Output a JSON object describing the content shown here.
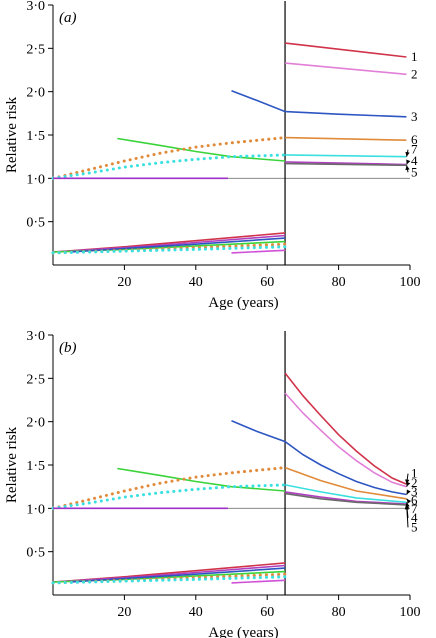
{
  "chart_data": [
    {
      "type": "line",
      "panel_label": "(a)",
      "xlabel": "Age (years)",
      "ylabel": "Relative risk",
      "xlim": [
        0,
        100
      ],
      "ylim": [
        0,
        3.0
      ],
      "xticks": [
        20,
        40,
        60,
        80,
        100
      ],
      "xtick_labels": [
        "20",
        "40",
        "60",
        "80",
        "100"
      ],
      "yticks": [
        0.5,
        1.0,
        1.5,
        2.0,
        2.5,
        3.0
      ],
      "ytick_labels": [
        "0·5",
        "1·0",
        "1·5",
        "2·0",
        "2·5",
        "3·0"
      ],
      "reference_y": 1.0,
      "vertical_line_x": 65,
      "grid": false,
      "series": [
        {
          "label": "1",
          "color": "#d0334a",
          "style": "solid",
          "x": [
            65,
            99
          ],
          "y": [
            2.56,
            2.4
          ]
        },
        {
          "label": "2",
          "color": "#e27fd8",
          "style": "solid",
          "x": [
            65,
            99
          ],
          "y": [
            2.33,
            2.2
          ]
        },
        {
          "label": "3",
          "color": "#2e56c2",
          "style": "solid",
          "x": [
            50,
            57,
            65,
            80,
            99
          ],
          "y": [
            2.01,
            1.9,
            1.77,
            1.74,
            1.71
          ]
        },
        {
          "label": "6",
          "color": "#e08a3a",
          "style": "solid",
          "x": [
            65,
            99
          ],
          "y": [
            1.47,
            1.44
          ]
        },
        {
          "label": "7",
          "color": "#3ae0e0",
          "style": "solid",
          "x": [
            65,
            99
          ],
          "y": [
            1.27,
            1.25
          ]
        },
        {
          "label": "4",
          "color": "#b040c0",
          "style": "solid",
          "x": [
            65,
            99
          ],
          "y": [
            1.19,
            1.16
          ]
        },
        {
          "label": "5",
          "color": "#6a6a6a",
          "style": "solid",
          "x": [
            65,
            99
          ],
          "y": [
            1.17,
            1.15
          ]
        },
        {
          "color": "#3ad43a",
          "style": "solid",
          "x": [
            18,
            30,
            40,
            50,
            65
          ],
          "y": [
            1.46,
            1.38,
            1.31,
            1.25,
            1.2
          ]
        },
        {
          "color": "#e08a3a",
          "style": "dotted",
          "x": [
            0,
            10,
            20,
            30,
            40,
            50,
            65
          ],
          "y": [
            1.0,
            1.1,
            1.2,
            1.29,
            1.36,
            1.41,
            1.47
          ]
        },
        {
          "color": "#3ae0e0",
          "style": "dotted",
          "x": [
            0,
            10,
            20,
            30,
            40,
            50,
            65
          ],
          "y": [
            1.0,
            1.06,
            1.13,
            1.18,
            1.22,
            1.25,
            1.27
          ]
        },
        {
          "color": "#a030c8",
          "style": "solid",
          "x": [
            0,
            49
          ],
          "y": [
            1.0,
            1.0
          ]
        },
        {
          "color": "#d0334a",
          "style": "solid",
          "x": [
            0,
            20,
            40,
            65
          ],
          "y": [
            0.15,
            0.21,
            0.28,
            0.37
          ]
        },
        {
          "color": "#b040c0",
          "style": "solid",
          "x": [
            0,
            20,
            40,
            65
          ],
          "y": [
            0.15,
            0.2,
            0.26,
            0.34
          ]
        },
        {
          "color": "#3ad43a",
          "style": "solid",
          "x": [
            0,
            20,
            40,
            65
          ],
          "y": [
            0.15,
            0.18,
            0.22,
            0.27
          ]
        },
        {
          "color": "#2e56c2",
          "style": "solid",
          "x": [
            5,
            20,
            40,
            65
          ],
          "y": [
            0.15,
            0.19,
            0.24,
            0.31
          ]
        },
        {
          "color": "#e08a3a",
          "style": "dotted",
          "x": [
            0,
            20,
            40,
            65
          ],
          "y": [
            0.14,
            0.17,
            0.2,
            0.24
          ]
        },
        {
          "color": "#3ae0e0",
          "style": "dotted",
          "x": [
            0,
            20,
            40,
            65
          ],
          "y": [
            0.14,
            0.16,
            0.18,
            0.21
          ]
        },
        {
          "color": "#d050d8",
          "style": "solid",
          "x": [
            50,
            65
          ],
          "y": [
            0.14,
            0.17
          ]
        }
      ],
      "end_labels": [
        {
          "text": "1",
          "y": 2.4,
          "arrow": false
        },
        {
          "text": "2",
          "y": 2.2,
          "arrow": false
        },
        {
          "text": "3",
          "y": 1.71,
          "arrow": false
        },
        {
          "text": "6",
          "y": 1.44,
          "arrow": false
        },
        {
          "text": "7",
          "y": 1.33,
          "arrow": true
        },
        {
          "text": "4",
          "y": 1.2,
          "arrow": true
        },
        {
          "text": "5",
          "y": 1.07,
          "arrow": true
        }
      ]
    },
    {
      "type": "line",
      "panel_label": "(b)",
      "xlabel": "Age (years)",
      "ylabel": "Relative risk",
      "xlim": [
        0,
        100
      ],
      "ylim": [
        0,
        3.0
      ],
      "xticks": [
        20,
        40,
        60,
        80,
        100
      ],
      "xtick_labels": [
        "20",
        "40",
        "60",
        "80",
        "100"
      ],
      "yticks": [
        0.5,
        1.0,
        1.5,
        2.0,
        2.5,
        3.0
      ],
      "ytick_labels": [
        "0·5",
        "1·0",
        "1·5",
        "2·0",
        "2·5",
        "3·0"
      ],
      "reference_y": 1.0,
      "vertical_line_x": 65,
      "grid": false,
      "series": [
        {
          "label": "1",
          "color": "#d0334a",
          "style": "solid",
          "x": [
            65,
            70,
            75,
            80,
            85,
            90,
            95,
            99
          ],
          "y": [
            2.56,
            2.3,
            2.07,
            1.85,
            1.66,
            1.49,
            1.35,
            1.28
          ]
        },
        {
          "label": "2",
          "color": "#e27fd8",
          "style": "solid",
          "x": [
            65,
            70,
            75,
            80,
            85,
            90,
            95,
            99
          ],
          "y": [
            2.33,
            2.1,
            1.9,
            1.71,
            1.55,
            1.41,
            1.3,
            1.25
          ]
        },
        {
          "label": "3",
          "color": "#2e56c2",
          "style": "solid",
          "x": [
            50,
            57,
            65,
            70,
            75,
            80,
            85,
            90,
            95,
            99
          ],
          "y": [
            2.01,
            1.89,
            1.77,
            1.62,
            1.5,
            1.4,
            1.31,
            1.24,
            1.19,
            1.16
          ]
        },
        {
          "label": "6",
          "color": "#e08a3a",
          "style": "solid",
          "x": [
            65,
            75,
            85,
            99
          ],
          "y": [
            1.47,
            1.32,
            1.2,
            1.11
          ]
        },
        {
          "label": "7",
          "color": "#3ae0e0",
          "style": "solid",
          "x": [
            65,
            75,
            85,
            99
          ],
          "y": [
            1.27,
            1.19,
            1.12,
            1.07
          ]
        },
        {
          "label": "4",
          "color": "#b040c0",
          "style": "solid",
          "x": [
            65,
            75,
            85,
            99
          ],
          "y": [
            1.19,
            1.13,
            1.08,
            1.05
          ]
        },
        {
          "label": "5",
          "color": "#6a6a6a",
          "style": "solid",
          "x": [
            65,
            75,
            85,
            99
          ],
          "y": [
            1.17,
            1.11,
            1.07,
            1.04
          ]
        },
        {
          "color": "#3ad43a",
          "style": "solid",
          "x": [
            18,
            30,
            40,
            50,
            65
          ],
          "y": [
            1.46,
            1.38,
            1.31,
            1.25,
            1.2
          ]
        },
        {
          "color": "#e08a3a",
          "style": "dotted",
          "x": [
            0,
            10,
            20,
            30,
            40,
            50,
            65
          ],
          "y": [
            1.0,
            1.1,
            1.2,
            1.29,
            1.36,
            1.41,
            1.47
          ]
        },
        {
          "color": "#3ae0e0",
          "style": "dotted",
          "x": [
            0,
            10,
            20,
            30,
            40,
            50,
            65
          ],
          "y": [
            1.0,
            1.06,
            1.13,
            1.18,
            1.22,
            1.25,
            1.27
          ]
        },
        {
          "color": "#a030c8",
          "style": "solid",
          "x": [
            0,
            49
          ],
          "y": [
            1.0,
            1.0
          ]
        },
        {
          "color": "#d0334a",
          "style": "solid",
          "x": [
            0,
            20,
            40,
            65
          ],
          "y": [
            0.15,
            0.21,
            0.28,
            0.37
          ]
        },
        {
          "color": "#b040c0",
          "style": "solid",
          "x": [
            0,
            20,
            40,
            65
          ],
          "y": [
            0.15,
            0.2,
            0.26,
            0.34
          ]
        },
        {
          "color": "#3ad43a",
          "style": "solid",
          "x": [
            0,
            20,
            40,
            65
          ],
          "y": [
            0.15,
            0.18,
            0.22,
            0.27
          ]
        },
        {
          "color": "#2e56c2",
          "style": "solid",
          "x": [
            5,
            20,
            40,
            65
          ],
          "y": [
            0.15,
            0.19,
            0.24,
            0.31
          ]
        },
        {
          "color": "#e08a3a",
          "style": "dotted",
          "x": [
            0,
            20,
            40,
            65
          ],
          "y": [
            0.14,
            0.17,
            0.2,
            0.24
          ]
        },
        {
          "color": "#3ae0e0",
          "style": "dotted",
          "x": [
            0,
            20,
            40,
            65
          ],
          "y": [
            0.14,
            0.16,
            0.18,
            0.21
          ]
        },
        {
          "color": "#d050d8",
          "style": "solid",
          "x": [
            50,
            65
          ],
          "y": [
            0.14,
            0.17
          ]
        }
      ],
      "end_labels": [
        {
          "text": "1",
          "y": 1.4,
          "arrow": true
        },
        {
          "text": "2",
          "y": 1.29,
          "arrow": true
        },
        {
          "text": "3",
          "y": 1.19,
          "arrow": true
        },
        {
          "text": "6",
          "y": 1.09,
          "arrow": true
        },
        {
          "text": "7",
          "y": 0.99,
          "arrow": true
        },
        {
          "text": "4",
          "y": 0.89,
          "arrow": true
        },
        {
          "text": "5",
          "y": 0.78,
          "arrow": true
        }
      ]
    }
  ]
}
